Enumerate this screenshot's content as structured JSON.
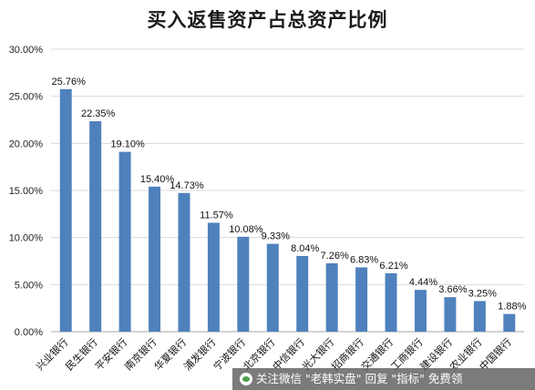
{
  "chart_data": {
    "type": "bar",
    "title": "买入返售资产占总资产比例",
    "categories": [
      "兴业银行",
      "民生银行",
      "平安银行",
      "南京银行",
      "华夏银行",
      "浦发银行",
      "宁波银行",
      "北京银行",
      "中信银行",
      "光大银行",
      "招商银行",
      "交通银行",
      "工商银行",
      "建设银行",
      "农业银行",
      "中国银行"
    ],
    "values": [
      25.76,
      22.35,
      19.1,
      15.4,
      14.73,
      11.57,
      10.08,
      9.33,
      8.04,
      7.26,
      6.83,
      6.21,
      4.44,
      3.66,
      3.25,
      1.88
    ],
    "value_labels": [
      "25.76%",
      "22.35%",
      "19.10%",
      "15.40%",
      "14.73%",
      "11.57%",
      "10.08%",
      "9.33%",
      "8.04%",
      "7.26%",
      "6.83%",
      "6.21%",
      "4.44%",
      "3.66%",
      "3.25%",
      "1.88%"
    ],
    "yticks": [
      "0.00%",
      "5.00%",
      "10.00%",
      "15.00%",
      "20.00%",
      "25.00%",
      "30.00%"
    ],
    "ylim": [
      0,
      30
    ],
    "xlabel": "",
    "ylabel": "",
    "grid": true,
    "bar_color": "#4f81bd",
    "grid_color": "#d9d9d9"
  },
  "watermark": {
    "text": "关注微信 \"老韩实盘\" 回复 \"指标\" 免费领"
  }
}
